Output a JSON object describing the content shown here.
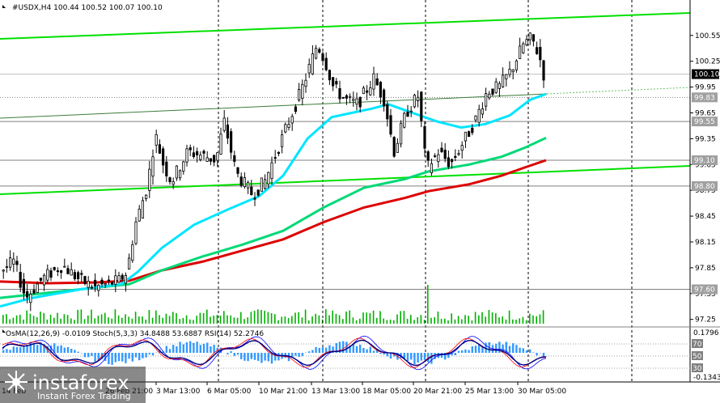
{
  "header": {
    "symbol_text": "#USDX,H4  100.44 100.52 100.07 100.10",
    "indicator_text": "OsMA(12,26,9) -0.0109  Stoch(5,3,3) 34.8488 53.6887  RSI(14) 52.2746"
  },
  "logo": {
    "brand": "instaforex",
    "tagline": "Instant Forex Trading"
  },
  "colors": {
    "background": "#ffffff",
    "candle": "#000000",
    "volume": "#00b000",
    "ema_fast": "#00e5ff",
    "ema_mid": "#00d977",
    "ema_slow": "#dd0000",
    "channel": "#00e000",
    "level_line": "#808080",
    "osma": "#3399ff",
    "stoch_main": "#0000ff",
    "stoch_signal": "#ff0000",
    "rsi": "#000080",
    "current_price_tag": "#000000",
    "level_tag": "#a0a0a0"
  },
  "chart_data": {
    "type": "candlestick",
    "symbol": "#USDX",
    "timeframe": "H4",
    "ohlc_last": {
      "open": 100.44,
      "high": 100.52,
      "low": 100.07,
      "close": 100.1
    },
    "y_axis_ticks": [
      "100.55",
      "100.25",
      "99.95",
      "99.65",
      "99.35",
      "99.05",
      "98.75",
      "98.45",
      "98.15",
      "97.85",
      "97.55",
      "97.25"
    ],
    "ylim": [
      97.2,
      100.83
    ],
    "x_ticks": [
      "3 Mar 13:00",
      "6 Mar 05:00",
      "10 Mar 21:00",
      "13 Mar 13:00",
      "18 Mar 05:00",
      "20 Mar 21:00",
      "25 Mar 13:00",
      "30 Mar 05:00"
    ],
    "x_ticks_partial": [
      "14 Feb",
      "26 Feb 21:00"
    ],
    "price_levels": [
      {
        "label": "99.83",
        "value": 99.83,
        "style": "dotted"
      },
      {
        "label": "99.55",
        "value": 99.55
      },
      {
        "label": "99.10",
        "value": 99.1
      },
      {
        "label": "98.80",
        "value": 98.8
      },
      {
        "label": "97.60",
        "value": 97.6
      }
    ],
    "current_price_label": "100.10",
    "indicator_panel": {
      "osma_value": -0.0109,
      "stoch_main": 34.8488,
      "stoch_signal": 53.6887,
      "rsi": 52.2746,
      "y_ticks": [
        "0.1796",
        "-0.1343"
      ],
      "levels": [
        "70",
        "50",
        "30"
      ]
    }
  }
}
